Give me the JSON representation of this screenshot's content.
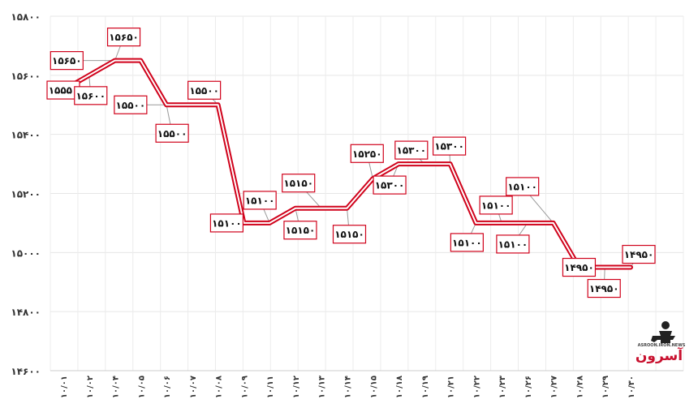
{
  "chart_data": {
    "type": "line",
    "title": "",
    "xlabel": "",
    "ylabel": "",
    "ylim": [
      14600,
      15800
    ],
    "yticks": [
      "۱۴۶۰۰",
      "۱۴۸۰۰",
      "۱۵۰۰۰",
      "۱۵۲۰۰",
      "۱۵۴۰۰",
      "۱۵۶۰۰",
      "۱۵۸۰۰"
    ],
    "ytick_values": [
      14600,
      14800,
      15000,
      15200,
      15400,
      15600,
      15800
    ],
    "grid": true,
    "categories": [
      "۱۰/۰۱",
      "۱۰/۰۲",
      "۱۰/۰۴",
      "۱۰/۰۵",
      "۱۰/۰۶",
      "۱۰/۰۷",
      "۱۰/۰۸",
      "۱۰/۰۹",
      "۱۰/۱۱",
      "۱۰/۱۲",
      "۱۰/۱۳",
      "۱۰/۱۴",
      "۱۰/۱۵",
      "۱۰/۱۸",
      "۱۰/۱۹",
      "۱۰/۲۱",
      "۱۰/۲۲",
      "۱۰/۲۳",
      "۱۰/۲۶",
      "۱۰/۲۷",
      "۱۰/۲۸",
      "۱۰/۲۹",
      "۱۰/۳۰"
    ],
    "values": [
      15550,
      15600,
      15650,
      15650,
      15500,
      15500,
      15500,
      15100,
      15100,
      15150,
      15150,
      15150,
      15250,
      15300,
      15300,
      15300,
      15100,
      15100,
      15100,
      15100,
      14950,
      14950,
      14950
    ],
    "labels": [
      "۱۵۵۵۰",
      "۱۵۶۰۰",
      "۱۵۶۵۰",
      "۱۵۶۵۰",
      "۱۵۵۰۰",
      "۱۵۵۰۰",
      "۱۵۵۰۰",
      "۱۵۱۰۰",
      "۱۵۱۰۰",
      "۱۵۱۵۰",
      "۱۵۱۵۰",
      "۱۵۱۵۰",
      "۱۵۲۵۰",
      "۱۵۳۰۰",
      "۱۵۳۰۰",
      "۱۵۳۰۰",
      "۱۵۱۰۰",
      "۱۵۱۰۰",
      "۱۵۱۰۰",
      "۱۵۱۰۰",
      "۱۴۹۵۰",
      "۱۴۹۵۰",
      "۱۴۹۵۰"
    ],
    "line_color": "#d0021b",
    "label_border_color": "#d0021b"
  },
  "logo": {
    "brand_text": "آسرون",
    "sub_text": "ASROON.IRON.NEWS"
  }
}
